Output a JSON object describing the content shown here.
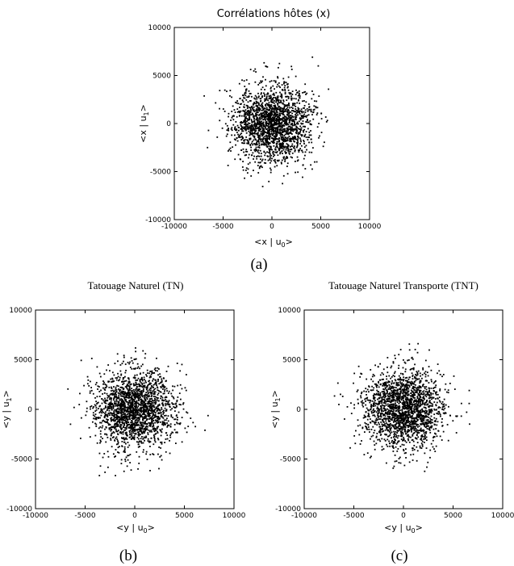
{
  "chart_data": [
    {
      "id": "a",
      "type": "scatter",
      "title": "Corrélations hôtes (x)",
      "xlabel": "<x | u0>",
      "ylabel": "<x | u1>",
      "xlim": [
        -10000,
        10000
      ],
      "ylim": [
        -10000,
        10000
      ],
      "xticks": [
        -10000,
        -5000,
        0,
        5000,
        10000
      ],
      "yticks": [
        -10000,
        -5000,
        0,
        5000,
        10000
      ],
      "grid": false,
      "point_count": 2000,
      "spread_sd": [
        2000,
        2000
      ],
      "caption": "(a)"
    },
    {
      "id": "b",
      "type": "scatter",
      "title": "Tatouage Naturel (TN)",
      "xlabel": "<y | u0>",
      "ylabel": "<y | u1>",
      "xlim": [
        -10000,
        10000
      ],
      "ylim": [
        -10000,
        10000
      ],
      "xticks": [
        -10000,
        -5000,
        0,
        5000,
        10000
      ],
      "yticks": [
        -10000,
        -5000,
        0,
        5000,
        10000
      ],
      "grid": false,
      "point_count": 2000,
      "spread_sd": [
        2000,
        2000
      ],
      "caption": "(b)"
    },
    {
      "id": "c",
      "type": "scatter",
      "title": "Tatouage Naturel Transporte (TNT)",
      "xlabel": "<y | u0>",
      "ylabel": "<y | u1>",
      "xlim": [
        -10000,
        10000
      ],
      "ylim": [
        -10000,
        10000
      ],
      "xticks": [
        -10000,
        -5000,
        0,
        5000,
        10000
      ],
      "yticks": [
        -10000,
        -5000,
        0,
        5000,
        10000
      ],
      "grid": false,
      "point_count": 2000,
      "spread_sd": [
        2000,
        2000
      ],
      "caption": "(c)"
    }
  ]
}
